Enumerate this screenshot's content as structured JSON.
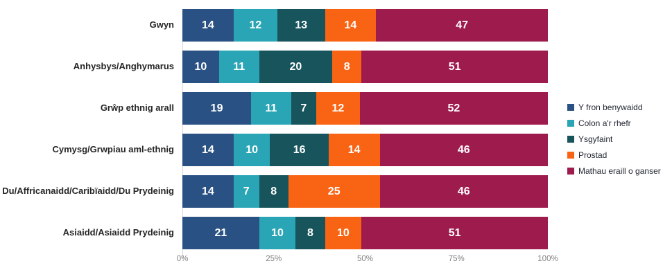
{
  "chart_data": {
    "type": "bar",
    "orientation": "horizontal-stacked",
    "title": "",
    "xlabel": "",
    "ylabel": "",
    "categories": [
      "Gwyn",
      "Anhysbys/Anghymarus",
      "Grŵp ethnig arall",
      "Cymysg/Grwpiau aml-ethnig",
      "Du/Affricanaidd/Caribïaidd/Du Prydeinig",
      "Asiaidd/Asiaidd Prydeinig"
    ],
    "series": [
      {
        "name": "Y fron benywaidd",
        "color": "#2a5183",
        "values": [
          14,
          10,
          19,
          14,
          14,
          21
        ]
      },
      {
        "name": "Colon a'r rhefr",
        "color": "#2aa5b5",
        "values": [
          12,
          11,
          11,
          10,
          7,
          10
        ]
      },
      {
        "name": "Ysgyfaint",
        "color": "#17545c",
        "values": [
          13,
          20,
          7,
          16,
          8,
          8
        ]
      },
      {
        "name": "Prostad",
        "color": "#f96414",
        "values": [
          14,
          8,
          12,
          14,
          25,
          10
        ]
      },
      {
        "name": "Mathau eraill o ganser",
        "color": "#9e1b4d",
        "values": [
          47,
          51,
          52,
          46,
          46,
          51
        ]
      }
    ],
    "x_axis": {
      "min": 0,
      "max": 100,
      "tick_labels": [
        "0%",
        "25%",
        "50%",
        "75%",
        "100%"
      ],
      "tick_positions": [
        0,
        25,
        50,
        75,
        100
      ]
    },
    "legend_position": "right",
    "grid": false,
    "value_label_color": "#ffffff",
    "axis_label_color": "#808080",
    "category_label_color": "#262626",
    "axis_line_color": "#d9d9d9"
  }
}
